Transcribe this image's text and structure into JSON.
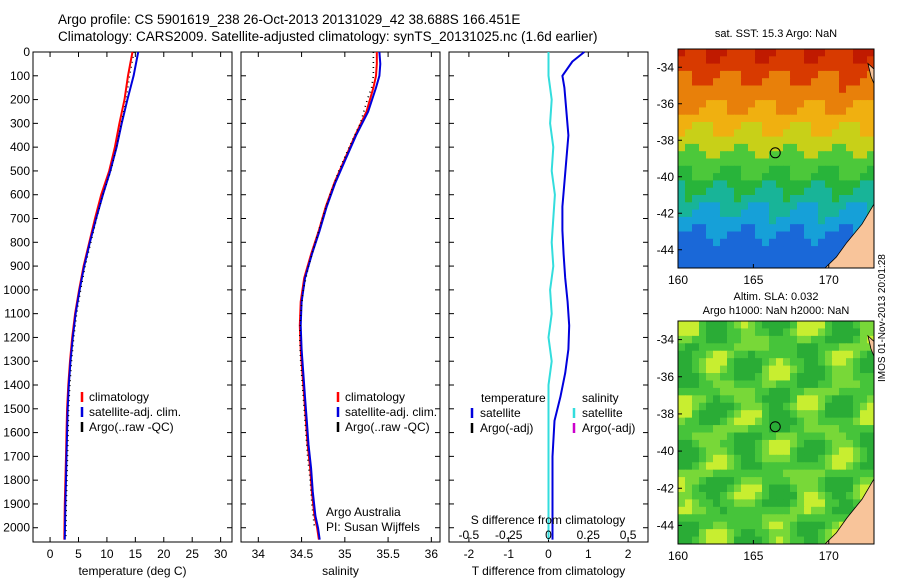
{
  "header": {
    "line1": "Argo profile: CS 5901619_238 26-Oct-2013 20131029_42 38.688S 166.451E",
    "line2": "Climatology: CARS2009. Satellite-adjusted climatology: synTS_20131025.nc (1.6d earlier)"
  },
  "signature": "IMOS 01-Nov-2013 20:01:28",
  "colors": {
    "climatology": "#ff0000",
    "satellite": "#0000dd",
    "salinity_satellite": "#33dddd",
    "argo": "#000000",
    "argo_adj": "#cc00cc",
    "land": "#f8c49a"
  },
  "chart_data": [
    {
      "type": "line",
      "id": "temperature",
      "xlabel": "temperature (deg C)",
      "ylabel": "",
      "xlim": [
        -3,
        32
      ],
      "ylim": [
        2060,
        0
      ],
      "xticks": [
        0,
        5,
        10,
        15,
        20,
        25,
        30
      ],
      "yticks": [
        0,
        100,
        200,
        300,
        400,
        500,
        600,
        700,
        800,
        900,
        1000,
        1100,
        1200,
        1300,
        1400,
        1500,
        1600,
        1700,
        1800,
        1900,
        2000
      ],
      "legend": [
        "climatology",
        "satellite-adj. clim.",
        "Argo(..raw -QC)"
      ],
      "series": [
        {
          "name": "climatology",
          "color": "#ff0000",
          "x": [
            14.5,
            14.1,
            13.7,
            13.1,
            12.2,
            11.4,
            10.4,
            9.0,
            7.9,
            6.9,
            5.9,
            5.1,
            4.4,
            3.9,
            3.5,
            3.2,
            3.0,
            2.9,
            2.8,
            2.7,
            2.6,
            2.5
          ],
          "y": [
            0,
            50,
            100,
            200,
            300,
            400,
            500,
            600,
            700,
            800,
            900,
            1000,
            1100,
            1200,
            1300,
            1400,
            1500,
            1600,
            1700,
            1800,
            1900,
            2050
          ]
        },
        {
          "name": "satellite-adj. clim.",
          "color": "#0000dd",
          "x": [
            15.5,
            15.1,
            14.7,
            13.6,
            12.6,
            11.7,
            10.6,
            9.3,
            8.1,
            7.0,
            6.0,
            5.2,
            4.5,
            4.0,
            3.6,
            3.3,
            3.1,
            3.0,
            2.9,
            2.8,
            2.7,
            2.6
          ],
          "y": [
            0,
            50,
            100,
            200,
            300,
            400,
            500,
            600,
            700,
            800,
            900,
            1000,
            1100,
            1200,
            1300,
            1400,
            1500,
            1600,
            1700,
            1800,
            1900,
            2050
          ]
        }
      ]
    },
    {
      "type": "line",
      "id": "salinity",
      "xlabel": "salinity",
      "xlim": [
        33.8,
        36.1
      ],
      "ylim": [
        2060,
        0
      ],
      "xticks": [
        34,
        34.5,
        35,
        35.5,
        36
      ],
      "legend": [
        "climatology",
        "satellite-adj. clim.",
        "Argo(..raw -QC)"
      ],
      "annotation": [
        "Argo Australia",
        "PI: Susan Wijffels"
      ],
      "series": [
        {
          "name": "climatology",
          "color": "#ff0000",
          "x": [
            35.37,
            35.37,
            35.36,
            35.33,
            35.25,
            35.12,
            35.0,
            34.88,
            34.78,
            34.7,
            34.61,
            34.53,
            34.49,
            34.48,
            34.49,
            34.51,
            34.53,
            34.55,
            34.57,
            34.6,
            34.62,
            34.65,
            34.68,
            34.7
          ],
          "y": [
            0,
            50,
            100,
            150,
            250,
            350,
            450,
            550,
            650,
            750,
            850,
            950,
            1050,
            1150,
            1250,
            1350,
            1450,
            1550,
            1650,
            1750,
            1850,
            1950,
            2000,
            2050
          ]
        },
        {
          "name": "satellite-adj. clim.",
          "color": "#0000dd",
          "x": [
            35.4,
            35.41,
            35.4,
            35.36,
            35.27,
            35.13,
            35.01,
            34.89,
            34.79,
            34.71,
            34.62,
            34.54,
            34.5,
            34.49,
            34.5,
            34.52,
            34.54,
            34.56,
            34.58,
            34.61,
            34.63,
            34.66,
            34.69,
            34.71
          ],
          "y": [
            0,
            50,
            100,
            150,
            250,
            350,
            450,
            550,
            650,
            750,
            850,
            950,
            1050,
            1150,
            1250,
            1350,
            1450,
            1550,
            1650,
            1750,
            1850,
            1950,
            2000,
            2050
          ]
        },
        {
          "name": "Argo(..raw -QC)",
          "color": "#000000",
          "x": [
            35.33,
            35.33,
            35.31,
            35.26,
            35.18,
            35.05,
            34.93,
            34.83,
            34.74,
            34.66,
            34.58,
            34.52,
            34.49,
            34.48,
            34.49,
            34.51,
            34.53,
            34.55,
            34.57,
            34.6,
            34.62,
            34.65
          ],
          "y": [
            0,
            100,
            150,
            200,
            300,
            400,
            500,
            600,
            700,
            800,
            900,
            1000,
            1100,
            1200,
            1300,
            1400,
            1500,
            1600,
            1700,
            1800,
            1900,
            2000
          ]
        }
      ]
    },
    {
      "type": "line",
      "id": "difference",
      "xlabel": "T difference from climatology",
      "xlabel_top": "S difference from climatology",
      "xlim": [
        -2.5,
        2.5
      ],
      "ylim": [
        2060,
        0
      ],
      "xticks_T": [
        -2,
        -1,
        0,
        1,
        2
      ],
      "xticks_S": [
        -0.5,
        -0.25,
        0,
        0.25,
        0.5
      ],
      "legend_temperature": [
        "temperature",
        "satellite",
        "Argo(-adj)"
      ],
      "legend_salinity": [
        "salinity",
        "satellite",
        "Argo(-adj)"
      ],
      "series": [
        {
          "name": "temperature satellite",
          "color": "#0000dd",
          "x": [
            0.9,
            0.6,
            0.35,
            0.4,
            0.45,
            0.5,
            0.45,
            0.4,
            0.35,
            0.35,
            0.38,
            0.42,
            0.48,
            0.52,
            0.5,
            0.42,
            0.3,
            0.15,
            0.1,
            0.1,
            0.1
          ],
          "y": [
            0,
            40,
            100,
            150,
            250,
            350,
            450,
            550,
            650,
            750,
            850,
            950,
            1050,
            1150,
            1250,
            1350,
            1450,
            1550,
            1700,
            1900,
            2050
          ]
        },
        {
          "name": "salinity satellite",
          "color": "#33dddd",
          "x": [
            0.0,
            0.0,
            0.02,
            0.01,
            0.03,
            0.02,
            0.04,
            0.03,
            0.02,
            0.03,
            0.01,
            0.02,
            0.0,
            0.02,
            0.0,
            0.0,
            0.0,
            0.0,
            0.0
          ],
          "y": [
            0,
            100,
            200,
            300,
            400,
            500,
            600,
            700,
            800,
            900,
            1000,
            1100,
            1200,
            1300,
            1400,
            1500,
            1600,
            1800,
            2050
          ]
        }
      ]
    },
    {
      "type": "heatmap",
      "id": "sst_map",
      "title": "sat. SST: 15.3 Argo: NaN",
      "xlim": [
        160,
        173
      ],
      "ylim": [
        -45,
        -33
      ],
      "xticks": [
        160,
        165,
        170
      ],
      "yticks": [
        -34,
        -36,
        -38,
        -40,
        -42,
        -44
      ],
      "argo_position": [
        166.451,
        -38.688
      ]
    },
    {
      "type": "heatmap",
      "id": "sla_map",
      "title": [
        "Altim. SLA: 0.032",
        "Argo h1000: NaN h2000: NaN"
      ],
      "xlim": [
        160,
        173
      ],
      "ylim": [
        -45,
        -33
      ],
      "xticks": [
        160,
        165,
        170
      ],
      "yticks": [
        -34,
        -36,
        -38,
        -40,
        -42,
        -44
      ],
      "argo_position": [
        166.451,
        -38.688
      ]
    }
  ]
}
